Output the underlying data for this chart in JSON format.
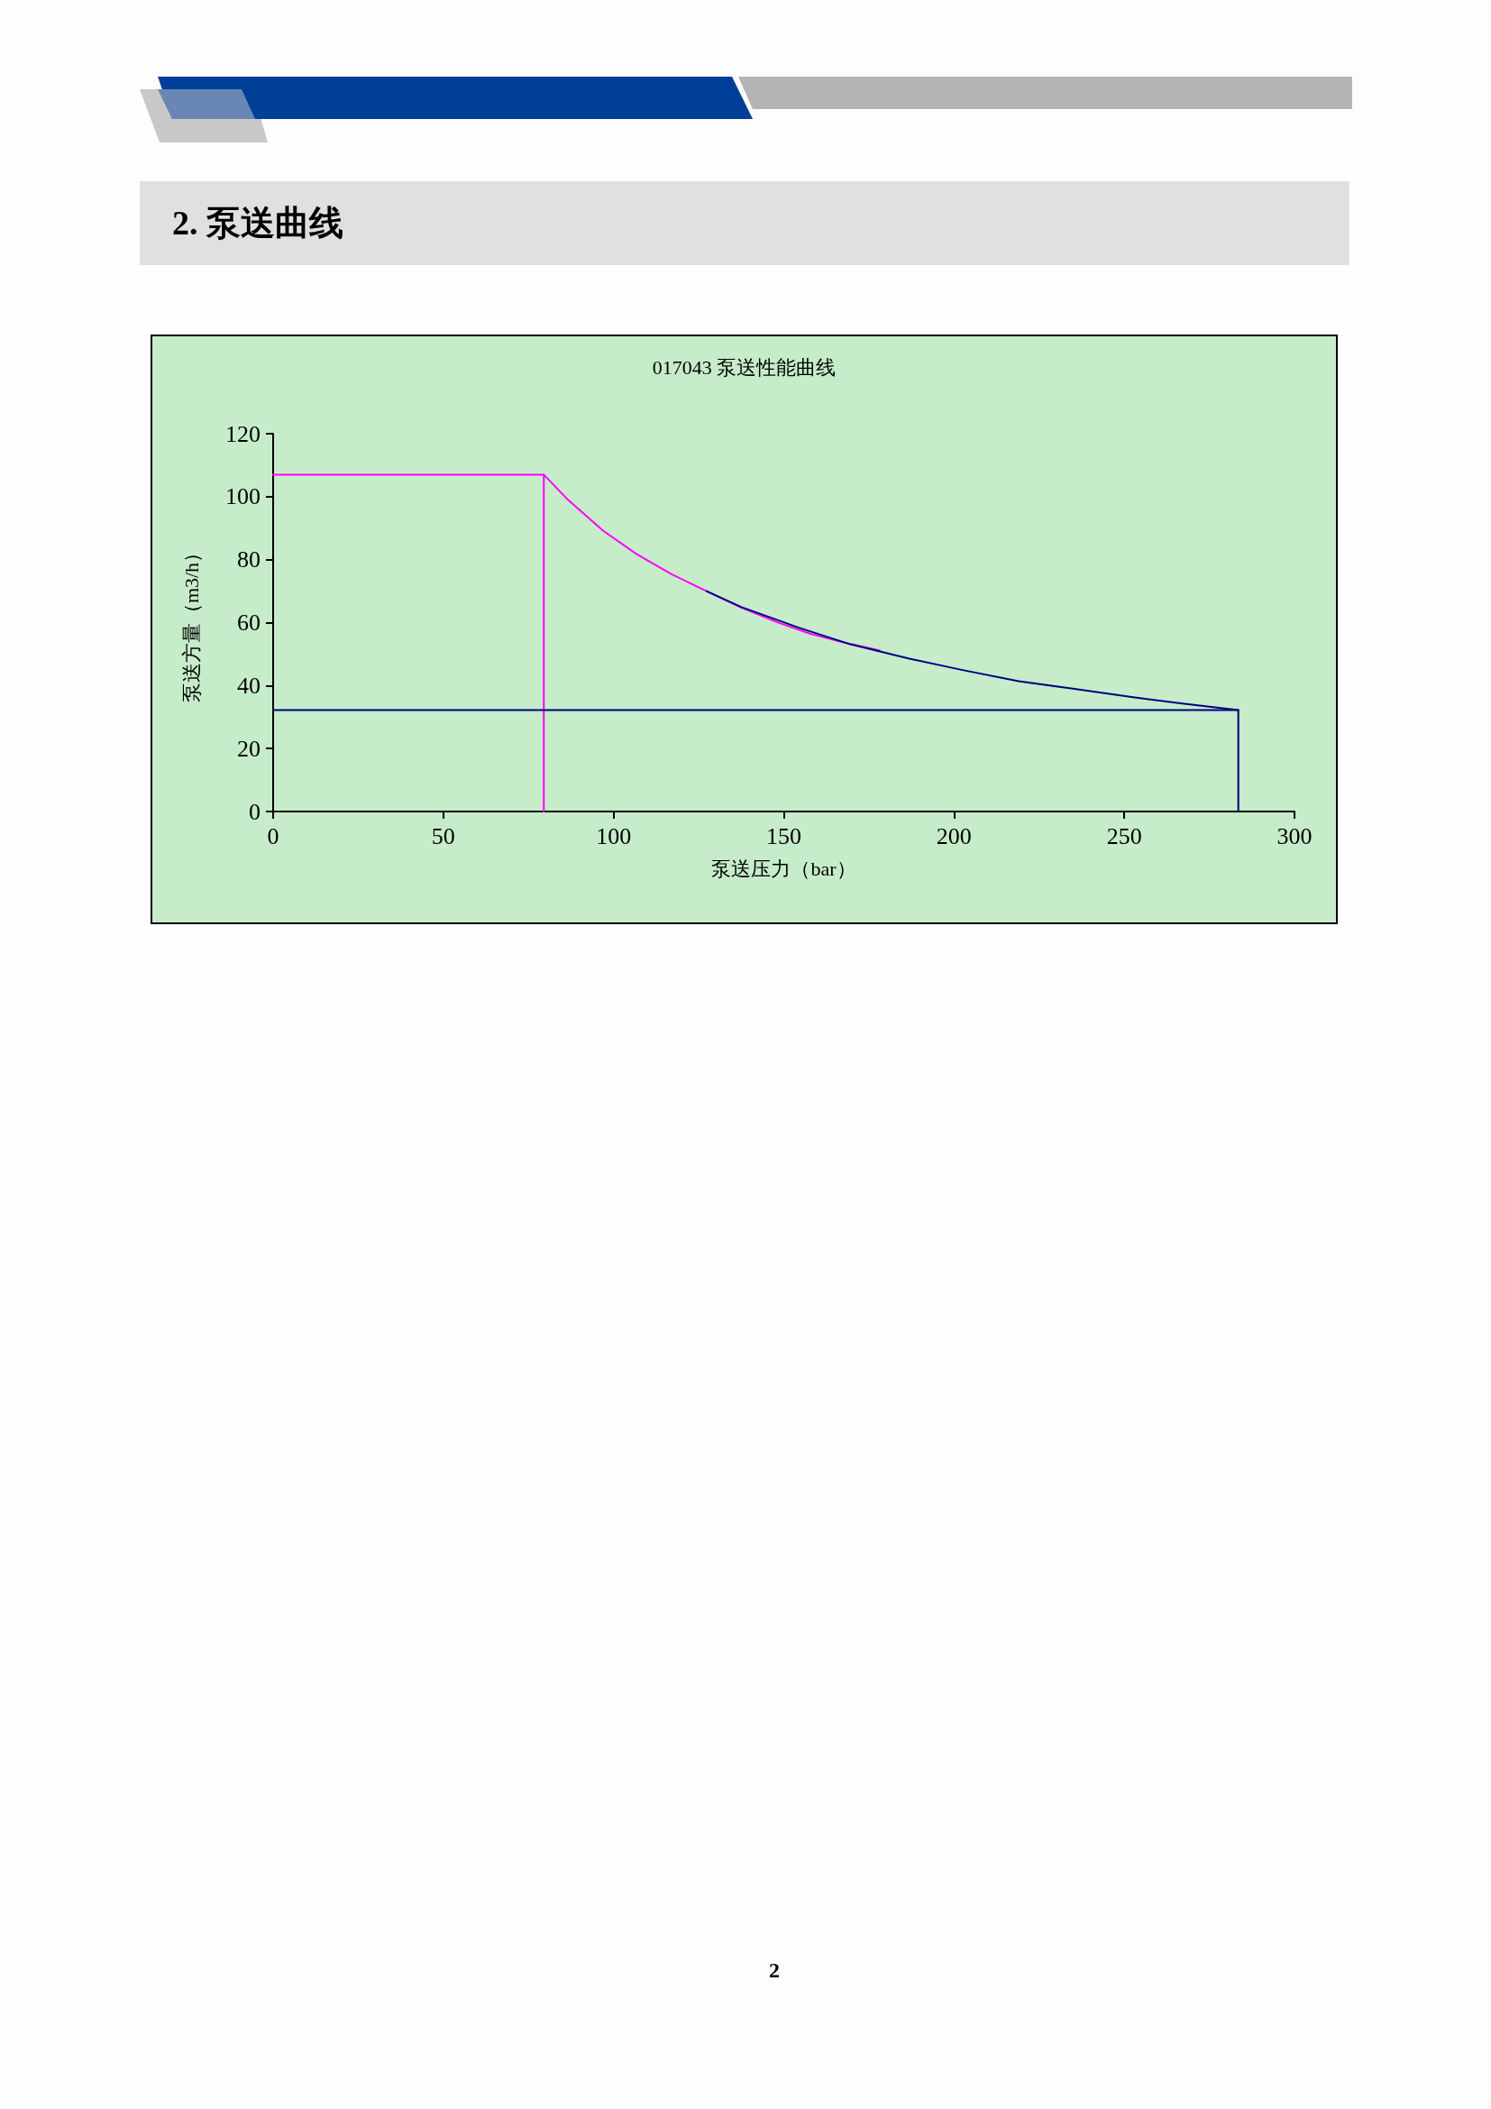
{
  "chart_data": {
    "type": "line",
    "title": "017043 泵送性能曲线",
    "xlabel": "泵送压力（bar）",
    "ylabel": "泵送方量（m3/h）",
    "annotations": [
      "2. 泵送曲线",
      "2"
    ],
    "xlim": [
      0,
      300
    ],
    "xticks": [
      0,
      50,
      100,
      150,
      200,
      250,
      300
    ],
    "ylim": [
      0,
      120
    ],
    "yticks": [
      0,
      20,
      40,
      60,
      80,
      100,
      120
    ],
    "grid": false,
    "marker": "none",
    "line_style": "solid",
    "series": [
      {
        "color": "#ff00ff",
        "x": [
          0,
          79.5,
          79.5
        ],
        "values": [
          107,
          107,
          0
        ]
      },
      {
        "color": "#ff00ff",
        "x": [
          79.5,
          86.6,
          96.9,
          106.7,
          116.8,
          127.3,
          137.6,
          148.1,
          157.7,
          167.8,
          178.1
        ],
        "values": [
          107,
          99,
          89.2,
          81.8,
          75.5,
          70,
          64.7,
          60.1,
          56.5,
          53.6,
          51.2
        ]
      },
      {
        "color": "#000080",
        "x": [
          127.3,
          137.6,
          154.4,
          169.6,
          186.6,
          202.2,
          219,
          234.9,
          252.6,
          267.6,
          283.5
        ],
        "values": [
          70,
          64.9,
          58.4,
          53.1,
          48.6,
          45,
          41.4,
          39,
          36.3,
          34.2,
          32.2
        ]
      },
      {
        "color": "#000080",
        "x": [
          0,
          283.5,
          283.5
        ],
        "values": [
          32.2,
          32.2,
          0
        ]
      }
    ]
  }
}
